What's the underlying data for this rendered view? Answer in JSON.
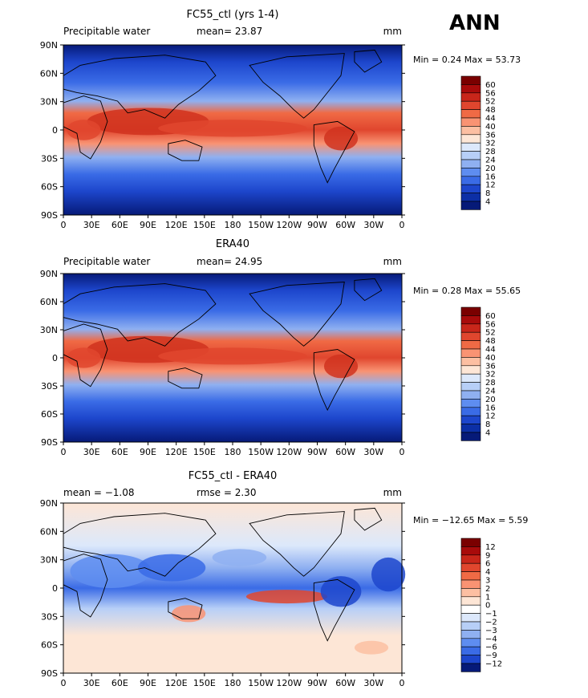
{
  "figure": {
    "label": "ANN"
  },
  "colors": {
    "ocean_low": "#0a2a8a",
    "ocean_mid": "#3c6fe0",
    "ocean_high": "#9fc0f5",
    "neutral": "#fde3cf",
    "warm": "#f2733f",
    "hot": "#d0331e",
    "land_line": "#000000"
  },
  "chart_data": [
    {
      "type": "heatmap",
      "title": "FC55_ctl (yrs 1-4)",
      "left_label": "Precipitable water",
      "stat_text": "mean=  23.87",
      "units": "mm",
      "minmax_text": "Min =   0.24 Max =  53.73",
      "x_ticks": [
        "0",
        "30E",
        "60E",
        "90E",
        "120E",
        "150E",
        "180",
        "150W",
        "120W",
        "90W",
        "60W",
        "30W",
        "0"
      ],
      "y_ticks": [
        "90N",
        "60N",
        "30N",
        "0",
        "30S",
        "60S",
        "90S"
      ],
      "colorbar_labels": [
        "60",
        "56",
        "52",
        "48",
        "44",
        "40",
        "36",
        "32",
        "28",
        "24",
        "20",
        "16",
        "12",
        "8",
        "4"
      ],
      "colorbar_colors": [
        "#7a0000",
        "#a80b0b",
        "#c8261a",
        "#e0462e",
        "#f06a45",
        "#f99373",
        "#fcbfa2",
        "#fde6d6",
        "#dce8fb",
        "#b7cff7",
        "#8fb0f1",
        "#5e8df0",
        "#3a6be6",
        "#1d46cc",
        "#0c2fa6",
        "#061a78"
      ],
      "min": 0.24,
      "max": 53.73,
      "mean": 23.87
    },
    {
      "type": "heatmap",
      "title": "ERA40",
      "left_label": "Precipitable water",
      "stat_text": "mean=  24.95",
      "units": "mm",
      "minmax_text": "Min =   0.28 Max =  55.65",
      "x_ticks": [
        "0",
        "30E",
        "60E",
        "90E",
        "120E",
        "150E",
        "180",
        "150W",
        "120W",
        "90W",
        "60W",
        "30W",
        "0"
      ],
      "y_ticks": [
        "90N",
        "60N",
        "30N",
        "0",
        "30S",
        "60S",
        "90S"
      ],
      "colorbar_labels": [
        "60",
        "56",
        "52",
        "48",
        "44",
        "40",
        "36",
        "32",
        "28",
        "24",
        "20",
        "16",
        "12",
        "8",
        "4"
      ],
      "colorbar_colors": [
        "#7a0000",
        "#a80b0b",
        "#c8261a",
        "#e0462e",
        "#f06a45",
        "#f99373",
        "#fcbfa2",
        "#fde6d6",
        "#dce8fb",
        "#b7cff7",
        "#8fb0f1",
        "#5e8df0",
        "#3a6be6",
        "#1d46cc",
        "#0c2fa6",
        "#061a78"
      ],
      "min": 0.28,
      "max": 55.65,
      "mean": 24.95
    },
    {
      "type": "heatmap",
      "title": "FC55_ctl - ERA40",
      "left_label": "mean =  −1.08",
      "stat_text": "rmse =    2.30",
      "units": "mm",
      "minmax_text": "Min = −12.65 Max =   5.59",
      "x_ticks": [
        "0",
        "30E",
        "60E",
        "90E",
        "120E",
        "150E",
        "180",
        "150W",
        "120W",
        "90W",
        "60W",
        "30W",
        "0"
      ],
      "y_ticks": [
        "90N",
        "60N",
        "30N",
        "0",
        "30S",
        "60S",
        "90S"
      ],
      "colorbar_labels": [
        "12",
        "9",
        "6",
        "4",
        "3",
        "2",
        "1",
        "0",
        "−1",
        "−2",
        "−3",
        "−4",
        "−6",
        "−9",
        "−12"
      ],
      "colorbar_colors": [
        "#7a0000",
        "#a80b0b",
        "#c8261a",
        "#e0462e",
        "#f06a45",
        "#f99373",
        "#fcbfa2",
        "#fde6d6",
        "#ffffff",
        "#dce8fb",
        "#b7cff7",
        "#8fb0f1",
        "#5e8df0",
        "#3a6be6",
        "#1d46cc",
        "#061a78"
      ],
      "min": -12.65,
      "max": 5.59,
      "mean": -1.08,
      "rmse": 2.3
    }
  ]
}
